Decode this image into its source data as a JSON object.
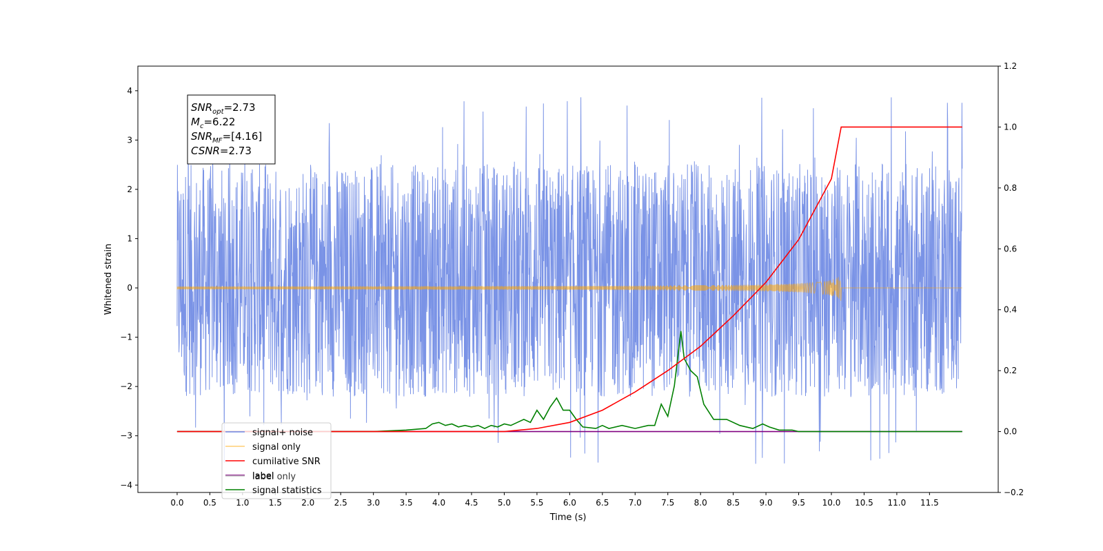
{
  "chart_data": {
    "type": "line",
    "xlabel": "Time (s)",
    "ylabel": "Whitened strain",
    "xlim": [
      -0.6,
      12.55
    ],
    "ylim": [
      -4.15,
      4.5
    ],
    "y2lim": [
      -0.2,
      1.2
    ],
    "x_ticks": [
      0.0,
      0.5,
      1.0,
      1.5,
      2.0,
      2.5,
      3.0,
      3.5,
      4.0,
      4.5,
      5.0,
      5.5,
      6.0,
      6.5,
      7.0,
      7.5,
      8.0,
      8.5,
      9.0,
      9.5,
      10.0,
      10.5,
      11.0,
      11.5
    ],
    "x_tick_labels": [
      "0.0",
      "0.5",
      "1.0",
      "1.5",
      "2.0",
      "2.5",
      "3.0",
      "3.5",
      "4.0",
      "4.5",
      "5.0",
      "5.5",
      "6.0",
      "6.5",
      "7.0",
      "7.5",
      "8.0",
      "8.5",
      "9.0",
      "9.5",
      "10.0",
      "10.5",
      "11.0",
      "11.5"
    ],
    "y_ticks": [
      -4,
      -3,
      -2,
      -1,
      0,
      1,
      2,
      3,
      4
    ],
    "y_tick_labels": [
      "−4",
      "−3",
      "−2",
      "−1",
      "0",
      "1",
      "2",
      "3",
      "4"
    ],
    "y2_ticks": [
      -0.2,
      0.0,
      0.2,
      0.4,
      0.6,
      0.8,
      1.0,
      1.2
    ],
    "y2_tick_labels": [
      "−0.2",
      "0.0",
      "0.2",
      "0.4",
      "0.6",
      "0.8",
      "1.0",
      "1.2"
    ],
    "annotation": [
      {
        "base": "SNR",
        "sub": "opt",
        "rest": "=2.73"
      },
      {
        "base": "M",
        "sub": "c",
        "rest": "=6.22"
      },
      {
        "base": "SNR",
        "sub": "MF",
        "rest": "=[4.16]"
      },
      {
        "base": "CSNR",
        "sub": "",
        "rest": "=2.73"
      }
    ],
    "legend_position": "bottom-left",
    "series": [
      {
        "name": "signal+ noise",
        "axis": "left",
        "color": "#6b87e3",
        "kind": "noise",
        "t_start": 0.0,
        "t_end": 12.0,
        "typical_range": [
          -2.0,
          2.3
        ],
        "extremes": [
          -3.75,
          4.12
        ]
      },
      {
        "name": "signal only",
        "axis": "left",
        "color": "#ffa500",
        "kind": "chirp",
        "t_start": 0.0,
        "t_end": 12.0,
        "merger_time": 10.15,
        "peak_amplitude": 0.3
      },
      {
        "name": "cumilative SNR",
        "axis": "right",
        "color": "#ff0000",
        "points": [
          [
            0.0,
            0.0
          ],
          [
            4.0,
            0.0
          ],
          [
            5.0,
            0.0
          ],
          [
            5.5,
            0.01
          ],
          [
            6.0,
            0.03
          ],
          [
            6.5,
            0.07
          ],
          [
            7.0,
            0.13
          ],
          [
            7.5,
            0.2
          ],
          [
            8.0,
            0.28
          ],
          [
            8.5,
            0.38
          ],
          [
            9.0,
            0.49
          ],
          [
            9.5,
            0.63
          ],
          [
            10.0,
            0.83
          ],
          [
            10.15,
            1.0
          ],
          [
            11.0,
            1.0
          ],
          [
            12.0,
            1.0
          ]
        ]
      },
      {
        "name": "label",
        "axis": "right",
        "color": "#800080",
        "points": [
          [
            0.0,
            0.0
          ],
          [
            12.0,
            0.0
          ]
        ]
      },
      {
        "name": "label only",
        "axis": "right",
        "color": "#c0c0c0",
        "points": []
      },
      {
        "name": "signal statistics",
        "axis": "right",
        "color": "#008000",
        "points": [
          [
            0.0,
            0.0
          ],
          [
            3.0,
            0.0
          ],
          [
            3.5,
            0.005
          ],
          [
            3.8,
            0.01
          ],
          [
            3.9,
            0.025
          ],
          [
            4.0,
            0.03
          ],
          [
            4.1,
            0.02
          ],
          [
            4.2,
            0.025
          ],
          [
            4.3,
            0.015
          ],
          [
            4.4,
            0.02
          ],
          [
            4.5,
            0.015
          ],
          [
            4.6,
            0.02
          ],
          [
            4.7,
            0.01
          ],
          [
            4.8,
            0.02
          ],
          [
            4.9,
            0.015
          ],
          [
            5.0,
            0.025
          ],
          [
            5.1,
            0.02
          ],
          [
            5.2,
            0.03
          ],
          [
            5.3,
            0.04
          ],
          [
            5.4,
            0.03
          ],
          [
            5.5,
            0.07
          ],
          [
            5.6,
            0.04
          ],
          [
            5.7,
            0.08
          ],
          [
            5.8,
            0.11
          ],
          [
            5.9,
            0.07
          ],
          [
            6.0,
            0.07
          ],
          [
            6.1,
            0.04
          ],
          [
            6.2,
            0.015
          ],
          [
            6.4,
            0.01
          ],
          [
            6.5,
            0.02
          ],
          [
            6.6,
            0.01
          ],
          [
            6.8,
            0.02
          ],
          [
            7.0,
            0.01
          ],
          [
            7.2,
            0.02
          ],
          [
            7.3,
            0.02
          ],
          [
            7.4,
            0.09
          ],
          [
            7.5,
            0.05
          ],
          [
            7.6,
            0.15
          ],
          [
            7.7,
            0.33
          ],
          [
            7.75,
            0.24
          ],
          [
            7.85,
            0.2
          ],
          [
            7.95,
            0.18
          ],
          [
            8.05,
            0.09
          ],
          [
            8.2,
            0.04
          ],
          [
            8.4,
            0.04
          ],
          [
            8.6,
            0.02
          ],
          [
            8.8,
            0.01
          ],
          [
            8.95,
            0.025
          ],
          [
            9.05,
            0.015
          ],
          [
            9.2,
            0.005
          ],
          [
            9.4,
            0.005
          ],
          [
            9.5,
            0.0
          ],
          [
            12.0,
            0.0
          ]
        ]
      }
    ]
  }
}
